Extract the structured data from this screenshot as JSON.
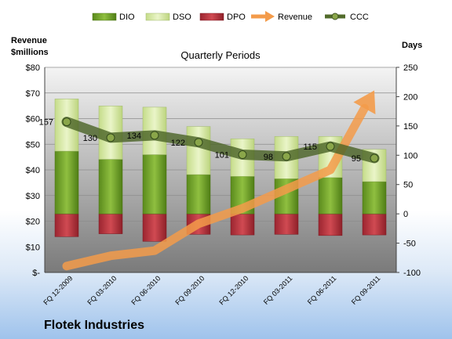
{
  "company": "Flotek Industries",
  "chart_data": {
    "type": "bar",
    "title": "Quarterly Periods",
    "y_left_label": [
      "Revenue",
      "$millions"
    ],
    "y_right_label": "Days",
    "y_left_range": [
      0,
      80
    ],
    "y_left_ticks": [
      "$-",
      "$10",
      "$20",
      "$30",
      "$40",
      "$50",
      "$60",
      "$70",
      "$80"
    ],
    "y_right_range": [
      -100,
      250
    ],
    "y_right_ticks": [
      "-100",
      "-50",
      "0",
      "50",
      "100",
      "150",
      "200",
      "250"
    ],
    "categories": [
      "FQ 12-2009",
      "FQ 03-2010",
      "FQ 06-2010",
      "FQ 09-2010",
      "FQ 12-2010",
      "FQ 03-2011",
      "FQ 06-2011",
      "FQ 09-2011"
    ],
    "legend": [
      {
        "name": "DIO",
        "color": "#6e9a28"
      },
      {
        "name": "DSO",
        "color": "#d7e7a8"
      },
      {
        "name": "DPO",
        "color": "#b5303a"
      },
      {
        "name": "Revenue",
        "color": "#f39b4a"
      },
      {
        "name": "CCC",
        "color": "#516b2b"
      }
    ],
    "series": [
      {
        "name": "DIO",
        "axis": "right",
        "values": [
          107,
          93,
          101,
          67,
          64,
          60,
          62,
          55
        ]
      },
      {
        "name": "DSO",
        "axis": "right",
        "values": [
          89,
          91,
          81,
          82,
          64,
          72,
          70,
          55
        ]
      },
      {
        "name": "DPO",
        "axis": "right",
        "values": [
          -39,
          -34,
          -47,
          -35,
          -36,
          -35,
          -37,
          -36
        ]
      },
      {
        "name": "Revenue",
        "axis": "left",
        "values": [
          2.5,
          6.5,
          8.5,
          19,
          25,
          32.5,
          40,
          71
        ]
      },
      {
        "name": "CCC",
        "axis": "right",
        "values": [
          157,
          130,
          134,
          122,
          101,
          98,
          115,
          95
        ]
      }
    ],
    "ccc_labels": [
      "157",
      "130",
      "134",
      "122",
      "101",
      "98",
      "115",
      "95"
    ],
    "grid": true,
    "legend_position": "top"
  }
}
